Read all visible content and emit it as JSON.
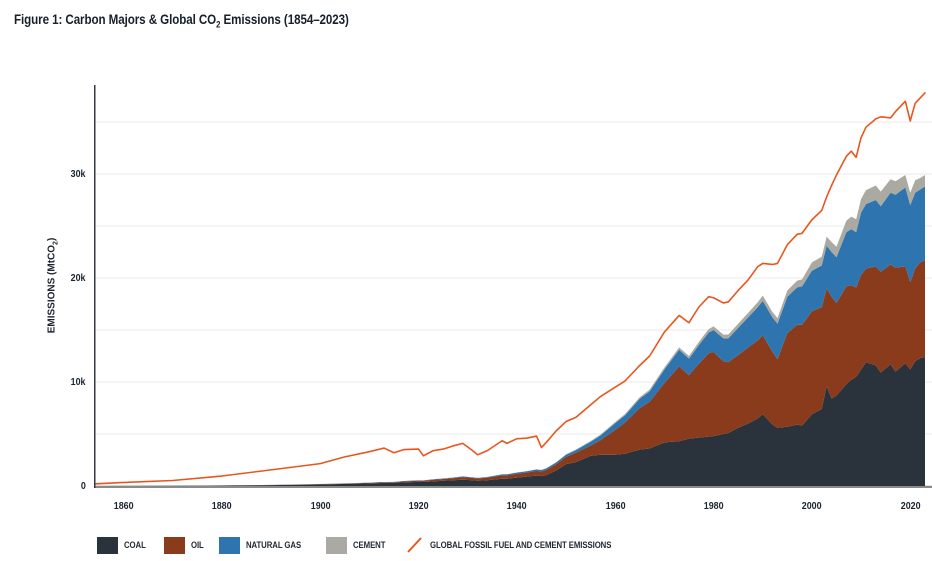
{
  "title": {
    "prefix": "Figure 1: Carbon Majors & Global CO",
    "sub": "2",
    "suffix": " Emissions (1854–2023)"
  },
  "y_axis": {
    "label_prefix": "EMISSIONS (MtCO",
    "label_sub": "2",
    "label_suffix": ")"
  },
  "legend": {
    "items": [
      {
        "label": "COAL",
        "color": "#2a323b",
        "type": "swatch"
      },
      {
        "label": "OIL",
        "color": "#8a3b1c",
        "type": "swatch"
      },
      {
        "label": "NATURAL GAS",
        "color": "#2e75b0",
        "type": "swatch"
      },
      {
        "label": "CEMENT",
        "color": "#aaa9a2",
        "type": "swatch"
      },
      {
        "label": "GLOBAL FOSSIL FUEL AND CEMENT EMISSIONS",
        "color": "#e8561e",
        "type": "line"
      }
    ]
  },
  "colors": {
    "coal": "#2a323b",
    "oil": "#8a3b1c",
    "natural_gas": "#2e75b0",
    "cement": "#aaa9a2",
    "global_line": "#e8561e",
    "grid": "#eaeaea",
    "axis_left": "#343a42",
    "axis_bottom": "#8a8a8a",
    "text": "#1b2530"
  },
  "chart_data": {
    "type": "area",
    "stacked": true,
    "units": "MtCO2",
    "title": "Figure 1: Carbon Majors & Global CO2 Emissions (1854–2023)",
    "ylabel": "EMISSIONS (MtCO2)",
    "xlim": [
      1854,
      2023
    ],
    "ylim": [
      0,
      38600
    ],
    "grid": "horizontal",
    "gridline_step": 5000,
    "legend_position": "bottom",
    "y_ticks": [
      {
        "label": "0",
        "value": 0
      },
      {
        "label": "10k",
        "value": 10000
      },
      {
        "label": "20k",
        "value": 20000
      },
      {
        "label": "30k",
        "value": 30000
      }
    ],
    "x_ticks": [
      {
        "label": "1860",
        "year": 1860
      },
      {
        "label": "1880",
        "year": 1880
      },
      {
        "label": "1900",
        "year": 1900
      },
      {
        "label": "1920",
        "year": 1920
      },
      {
        "label": "1940",
        "year": 1940
      },
      {
        "label": "1960",
        "year": 1960
      },
      {
        "label": "1980",
        "year": 1980
      },
      {
        "label": "2000",
        "year": 2000
      },
      {
        "label": "2020",
        "year": 2020
      }
    ],
    "x": [
      1854,
      1860,
      1870,
      1880,
      1890,
      1900,
      1905,
      1910,
      1913,
      1915,
      1917,
      1920,
      1921,
      1923,
      1925,
      1927,
      1929,
      1931,
      1932,
      1934,
      1937,
      1938,
      1940,
      1942,
      1944,
      1945,
      1946,
      1948,
      1950,
      1952,
      1955,
      1957,
      1960,
      1962,
      1965,
      1967,
      1970,
      1973,
      1975,
      1977,
      1979,
      1980,
      1982,
      1983,
      1985,
      1987,
      1989,
      1990,
      1992,
      1993,
      1995,
      1997,
      1998,
      2000,
      2002,
      2003,
      2004,
      2005,
      2007,
      2008,
      2009,
      2010,
      2011,
      2013,
      2014,
      2016,
      2017,
      2019,
      2020,
      2021,
      2022,
      2023
    ],
    "series": [
      {
        "name": "coal",
        "label": "COAL",
        "color": "#2a323b",
        "values": [
          5,
          10,
          20,
          40,
          80,
          150,
          200,
          250,
          300,
          300,
          350,
          400,
          380,
          450,
          500,
          550,
          600,
          550,
          500,
          550,
          700,
          700,
          800,
          900,
          1000,
          950,
          1050,
          1500,
          2100,
          2300,
          2900,
          3000,
          3000,
          3100,
          3500,
          3600,
          4200,
          4300,
          4550,
          4650,
          4750,
          4800,
          5000,
          5100,
          5600,
          6000,
          6500,
          6900,
          5900,
          5600,
          5700,
          5900,
          5800,
          6900,
          7400,
          9600,
          8400,
          8700,
          9800,
          10200,
          10500,
          11200,
          11900,
          11600,
          10900,
          11700,
          11000,
          11800,
          11200,
          12000,
          12300,
          12400
        ]
      },
      {
        "name": "oil",
        "label": "OIL",
        "color": "#8a3b1c",
        "values": [
          0,
          0,
          5,
          10,
          15,
          25,
          35,
          50,
          60,
          70,
          90,
          110,
          120,
          150,
          170,
          200,
          250,
          220,
          220,
          250,
          330,
          330,
          380,
          400,
          450,
          450,
          500,
          600,
          700,
          900,
          1000,
          1400,
          2400,
          3000,
          4000,
          4500,
          5700,
          7200,
          6100,
          7100,
          8000,
          8100,
          7000,
          6800,
          7000,
          7300,
          7500,
          7600,
          7000,
          6600,
          9000,
          9600,
          9700,
          9900,
          9800,
          9400,
          9800,
          8900,
          9400,
          9100,
          8600,
          9100,
          9000,
          9500,
          9700,
          9600,
          10000,
          9300,
          8400,
          8900,
          9200,
          9300
        ]
      },
      {
        "name": "natural-gas",
        "label": "NATURAL GAS",
        "color": "#2e75b0",
        "values": [
          0,
          0,
          0,
          5,
          10,
          15,
          20,
          25,
          30,
          30,
          35,
          40,
          40,
          50,
          55,
          60,
          70,
          65,
          60,
          70,
          90,
          95,
          110,
          120,
          140,
          140,
          150,
          170,
          200,
          250,
          350,
          450,
          650,
          700,
          900,
          1000,
          1300,
          1600,
          1600,
          1800,
          2000,
          2100,
          2200,
          2300,
          2600,
          2900,
          3200,
          3300,
          3300,
          3400,
          3500,
          3600,
          3700,
          3900,
          4000,
          4100,
          4300,
          4400,
          5200,
          5400,
          5300,
          6000,
          6200,
          6400,
          6300,
          6900,
          7000,
          7600,
          7400,
          7300,
          7000,
          7100
        ]
      },
      {
        "name": "cement",
        "label": "CEMENT",
        "color": "#aaa9a2",
        "values": [
          0,
          0,
          0,
          0,
          0,
          0,
          0,
          0,
          0,
          0,
          0,
          5,
          5,
          6,
          8,
          9,
          10,
          9,
          8,
          9,
          12,
          12,
          15,
          15,
          15,
          15,
          20,
          30,
          50,
          60,
          80,
          90,
          100,
          120,
          150,
          170,
          200,
          230,
          250,
          300,
          330,
          350,
          360,
          370,
          400,
          440,
          480,
          500,
          520,
          540,
          600,
          650,
          670,
          800,
          850,
          880,
          950,
          1000,
          1100,
          1200,
          1250,
          1300,
          1350,
          1400,
          1400,
          1300,
          1300,
          1200,
          1200,
          1200,
          1100,
          1100
        ]
      }
    ],
    "line_series": {
      "name": "global-fossil-fuel-and-cement-emissions",
      "label": "GLOBAL FOSSIL FUEL AND CEMENT EMISSIONS",
      "color": "#e8561e",
      "values": [
        200,
        340,
        530,
        960,
        1550,
        2150,
        2800,
        3300,
        3650,
        3200,
        3500,
        3550,
        2900,
        3400,
        3550,
        3850,
        4100,
        3400,
        3000,
        3400,
        4350,
        4100,
        4550,
        4600,
        4800,
        3700,
        4200,
        5300,
        6200,
        6600,
        7800,
        8600,
        9500,
        10100,
        11600,
        12500,
        14800,
        16400,
        15700,
        17200,
        18200,
        18100,
        17600,
        17700,
        18800,
        19800,
        21100,
        21400,
        21300,
        21400,
        23200,
        24200,
        24300,
        25600,
        26500,
        27800,
        28900,
        29900,
        31700,
        32200,
        31600,
        33500,
        34500,
        35300,
        35500,
        35400,
        36000,
        37000,
        35100,
        36800,
        37300,
        37800
      ]
    }
  }
}
